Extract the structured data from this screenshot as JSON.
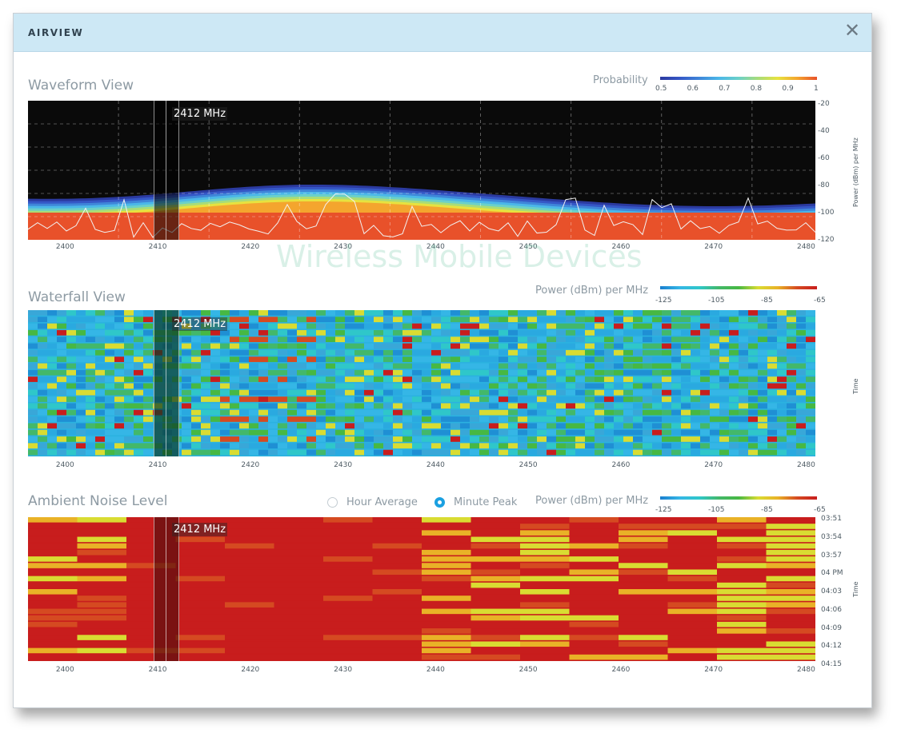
{
  "window": {
    "title": "AIRVIEW",
    "close_icon": "close-icon"
  },
  "frequency_axis": {
    "ticks": [
      "2400",
      "2410",
      "2420",
      "2430",
      "2440",
      "2450",
      "2460",
      "2470",
      "2480"
    ],
    "range": [
      2396,
      2481
    ]
  },
  "marker": {
    "label": "2412 MHz",
    "frequency": 2412
  },
  "waveform": {
    "title": "Waveform View",
    "legend_label": "Probability",
    "legend_ticks": [
      "0.5",
      "0.6",
      "0.7",
      "0.8",
      "0.9",
      "1"
    ],
    "legend_colors": [
      "#2b3aa0",
      "#3557c6",
      "#3f86d9",
      "#4bb7e8",
      "#6bd0c8",
      "#a8dc79",
      "#e7e23f",
      "#f4a52e",
      "#e8512a"
    ],
    "y_ticks": [
      "-20",
      "-40",
      "-60",
      "-80",
      "-100",
      "-120"
    ],
    "y_range": [
      -120,
      -20
    ],
    "y_label": "Power (dBm) per MHz"
  },
  "waterfall": {
    "title": "Waterfall View",
    "legend_label": "Power (dBm) per MHz",
    "legend_ticks": [
      "-125",
      "-105",
      "-85",
      "-65"
    ],
    "y_label": "Time"
  },
  "ambient": {
    "title": "Ambient Noise Level",
    "radio_hour": "Hour Average",
    "radio_minute": "Minute Peak",
    "legend_label": "Power (dBm) per MHz",
    "legend_ticks": [
      "-125",
      "-105",
      "-85",
      "-65"
    ],
    "time_ticks": [
      "03:51",
      "03:54",
      "03:57",
      "04 PM",
      "04:03",
      "04:06",
      "04:09",
      "04:12",
      "04:15"
    ],
    "y_label": "Time"
  },
  "watermark": {
    "text": "Wireless Mobile Devices"
  },
  "colors": {
    "heat_scale": [
      "#1a7fcf",
      "#35b6e6",
      "#2fc7c9",
      "#43b86a",
      "#47b843",
      "#d9dc32",
      "#e9b227",
      "#d54a21",
      "#c81d1d"
    ]
  }
}
